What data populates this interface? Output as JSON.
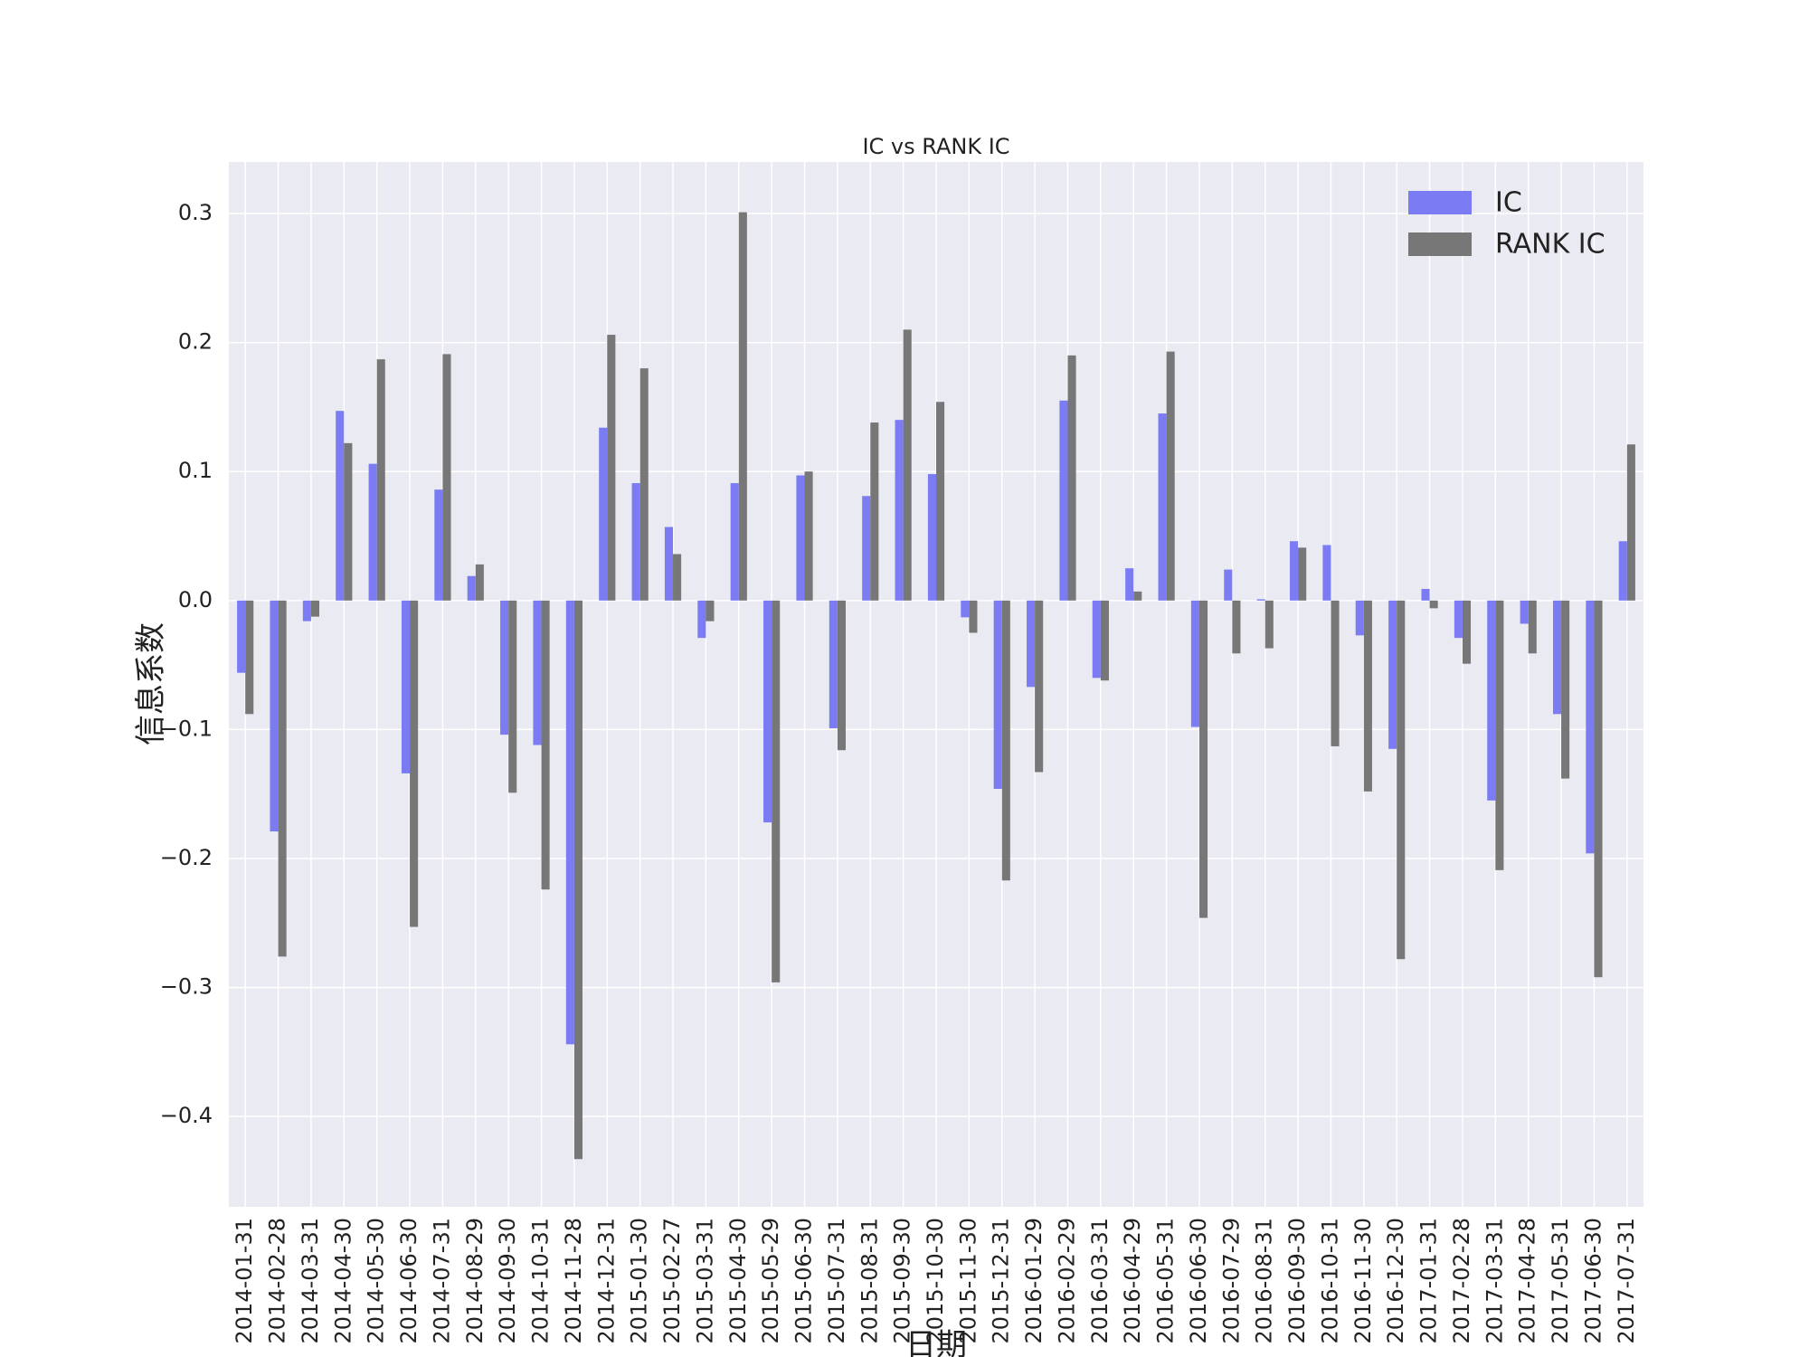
{
  "chart_data": {
    "type": "bar",
    "title": "IC vs RANK IC",
    "x_label": "日期",
    "y_label": "信息系数",
    "categories": [
      "2014-01-31",
      "2014-02-28",
      "2014-03-31",
      "2014-04-30",
      "2014-05-30",
      "2014-06-30",
      "2014-07-31",
      "2014-08-29",
      "2014-09-30",
      "2014-10-31",
      "2014-11-28",
      "2014-12-31",
      "2015-01-30",
      "2015-02-27",
      "2015-03-31",
      "2015-04-30",
      "2015-05-29",
      "2015-06-30",
      "2015-07-31",
      "2015-08-31",
      "2015-09-30",
      "2015-10-30",
      "2015-11-30",
      "2015-12-31",
      "2016-01-29",
      "2016-02-29",
      "2016-03-31",
      "2016-04-29",
      "2016-05-31",
      "2016-06-30",
      "2016-07-29",
      "2016-08-31",
      "2016-09-30",
      "2016-10-31",
      "2016-11-30",
      "2016-12-30",
      "2017-01-31",
      "2017-02-28",
      "2017-03-31",
      "2017-04-28",
      "2017-05-31",
      "2017-06-30",
      "2017-07-31"
    ],
    "series": [
      {
        "name": "IC",
        "color": "#7b7bf4",
        "values": [
          -0.056,
          -0.179,
          -0.016,
          0.147,
          0.106,
          -0.134,
          0.086,
          0.019,
          -0.104,
          -0.112,
          -0.344,
          0.134,
          0.091,
          0.057,
          -0.029,
          0.091,
          -0.172,
          0.097,
          -0.099,
          0.081,
          0.14,
          0.098,
          -0.013,
          -0.146,
          -0.067,
          0.155,
          -0.06,
          0.025,
          0.145,
          -0.098,
          0.024,
          0.001,
          0.046,
          0.043,
          -0.027,
          -0.115,
          0.009,
          -0.029,
          -0.155,
          -0.018,
          -0.088,
          -0.196,
          0.046
        ]
      },
      {
        "name": "RANK IC",
        "color": "#777777",
        "values": [
          -0.088,
          -0.276,
          -0.0125,
          0.122,
          0.187,
          -0.253,
          0.191,
          0.028,
          -0.149,
          -0.224,
          -0.433,
          0.206,
          0.18,
          0.036,
          -0.016,
          0.301,
          -0.296,
          0.1,
          -0.116,
          0.138,
          0.21,
          0.154,
          -0.025,
          -0.217,
          -0.133,
          0.19,
          -0.062,
          0.007,
          0.193,
          -0.246,
          -0.041,
          -0.037,
          0.041,
          -0.113,
          -0.148,
          -0.278,
          -0.006,
          -0.049,
          -0.209,
          -0.041,
          -0.138,
          -0.292,
          0.121
        ]
      }
    ],
    "ylim": [
      -0.47,
      0.34
    ],
    "yticks": [
      {
        "value": -0.4,
        "label": "−0.4"
      },
      {
        "value": -0.3,
        "label": "−0.3"
      },
      {
        "value": -0.2,
        "label": "−0.2"
      },
      {
        "value": -0.1,
        "label": "−0.1"
      },
      {
        "value": 0,
        "label": "0.0"
      },
      0.1,
      0.2,
      0.3
    ],
    "grid": true,
    "legend": "upper right"
  }
}
